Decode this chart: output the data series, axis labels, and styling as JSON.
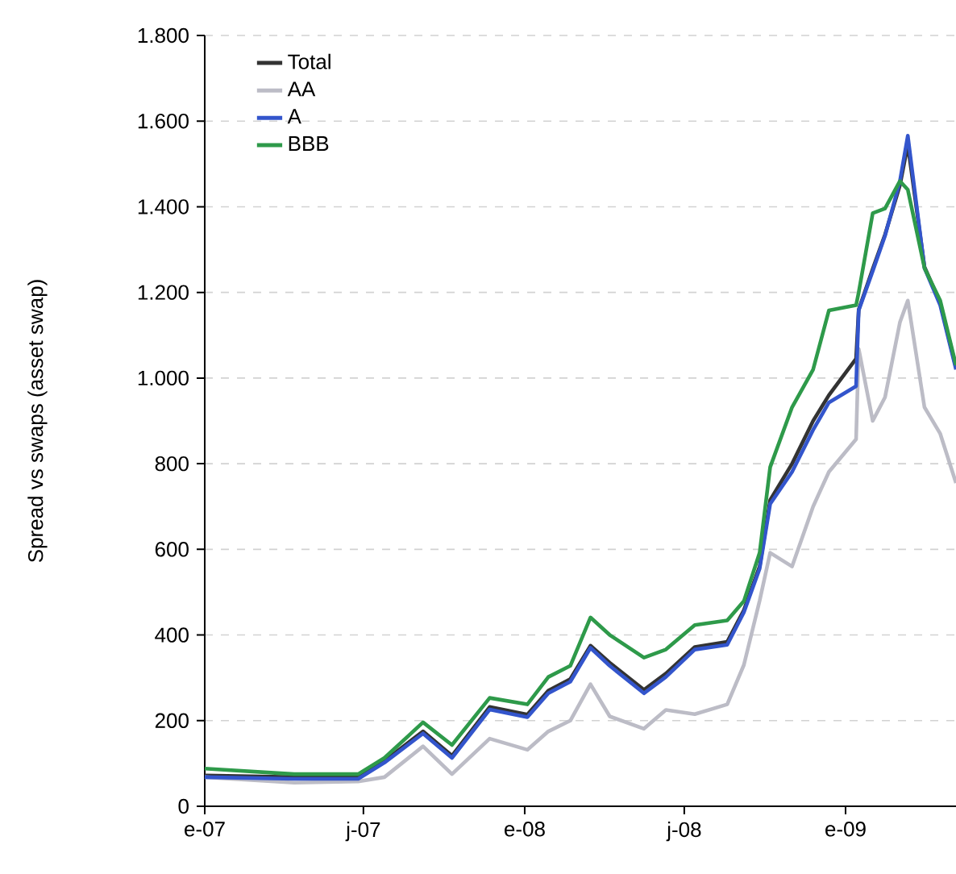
{
  "chart_data": {
    "type": "line",
    "ylabel": "Spread vs swaps (asset swap)",
    "x": [
      "2007-01-01",
      "2007-04-13",
      "2007-06-25",
      "2007-07-25",
      "2007-09-07",
      "2007-10-10",
      "2007-11-22",
      "2008-01-04",
      "2008-01-28",
      "2008-02-22",
      "2008-03-16",
      "2008-04-07",
      "2008-05-16",
      "2008-06-10",
      "2008-07-13",
      "2008-08-19",
      "2008-09-07",
      "2008-09-25",
      "2008-10-07",
      "2008-11-01",
      "2008-11-25",
      "2008-12-13",
      "2009-01-13",
      "2009-01-16",
      "2009-02-01",
      "2009-02-15",
      "2009-03-04",
      "2009-03-13",
      "2009-04-01",
      "2009-04-19",
      "2009-05-07"
    ],
    "xlim": [
      "2007-01-01",
      "2009-05-07"
    ],
    "xticks": [
      {
        "value": "2007-01",
        "label": "e-07"
      },
      {
        "value": "2007-07",
        "label": "j-07"
      },
      {
        "value": "2008-01",
        "label": "e-08"
      },
      {
        "value": "2008-07",
        "label": "j-08"
      },
      {
        "value": "2009-01",
        "label": "e-09"
      }
    ],
    "ylim": [
      0,
      1800
    ],
    "yticks": [
      0,
      200,
      400,
      600,
      800,
      {
        "value": 1000,
        "label": "1.000"
      },
      {
        "value": 1200,
        "label": "1.200"
      },
      {
        "value": 1400,
        "label": "1.400"
      },
      {
        "value": 1600,
        "label": "1.600"
      },
      {
        "value": 1800,
        "label": "1.800"
      }
    ],
    "grid": "y",
    "legend": "top left",
    "series": [
      {
        "name": "Total",
        "color": "#333333",
        "values": [
          72,
          68,
          68,
          106,
          175,
          118,
          232,
          214,
          270,
          297,
          375,
          335,
          272,
          310,
          372,
          384,
          458,
          560,
          715,
          800,
          900,
          960,
          1045,
          1160,
          1255,
          1335,
          1450,
          1545,
          1260,
          1175,
          1025
        ]
      },
      {
        "name": "AA",
        "color": "#bcbcc6",
        "values": [
          68,
          55,
          58,
          68,
          140,
          75,
          158,
          132,
          175,
          200,
          285,
          210,
          181,
          225,
          215,
          238,
          330,
          480,
          592,
          560,
          700,
          781,
          857,
          1068,
          900,
          955,
          1130,
          1181,
          932,
          870,
          755
        ]
      },
      {
        "name": "A",
        "color": "#3355cc",
        "values": [
          68,
          64,
          64,
          102,
          170,
          113,
          226,
          208,
          264,
          291,
          370,
          328,
          264,
          302,
          366,
          377,
          453,
          555,
          706,
          781,
          879,
          943,
          981,
          1158,
          1250,
          1332,
          1460,
          1566,
          1257,
          1170,
          1020
        ]
      },
      {
        "name": "BBB",
        "color": "#2e9a4a",
        "values": [
          88,
          75,
          75,
          113,
          196,
          143,
          253,
          238,
          302,
          328,
          441,
          400,
          347,
          366,
          423,
          434,
          479,
          592,
          792,
          932,
          1020,
          1158,
          1170,
          1200,
          1385,
          1396,
          1460,
          1440,
          1257,
          1181,
          1030
        ]
      }
    ]
  }
}
